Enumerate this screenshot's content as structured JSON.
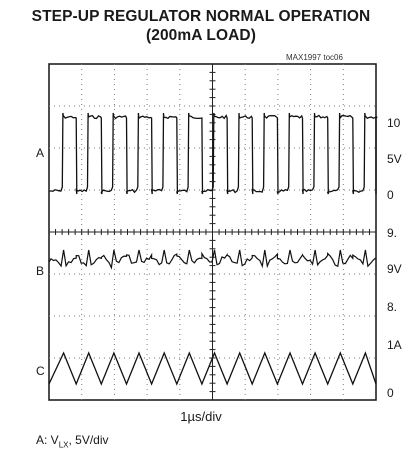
{
  "title_line1": "STEP-UP REGULATOR NORMAL OPERATION",
  "title_line2": "(200mA LOAD)",
  "figure_id": "MAX1997 toc06",
  "chart_data": {
    "type": "line",
    "display": "oscilloscope",
    "grid": true,
    "divisions": {
      "x": 10,
      "y": 8
    },
    "timebase": "1µs/div",
    "switching_cycles": 13,
    "traces": [
      {
        "label": "A",
        "waveform": "pulse",
        "duty": 0.55,
        "right_labels": [
          "10",
          "5V",
          "0"
        ]
      },
      {
        "label": "B",
        "waveform": "ripple",
        "right_labels": [
          "9.",
          "9V",
          "8."
        ]
      },
      {
        "label": "C",
        "waveform": "triangle",
        "right_labels": [
          "1A",
          "0"
        ]
      }
    ],
    "caption": {
      "prefix": "A: V",
      "subscript": "LX",
      "suffix": ", 5V/div"
    },
    "colors": {
      "trace": "#111111",
      "grid": "#7a7a7a",
      "border": "#222222"
    }
  }
}
